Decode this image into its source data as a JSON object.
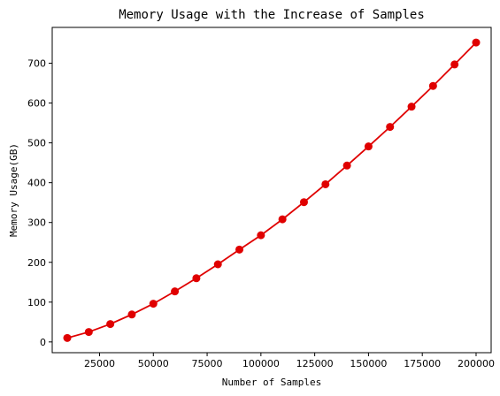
{
  "chart_data": {
    "type": "line",
    "title": "Memory Usage with the Increase of Samples",
    "xlabel": "Number of Samples",
    "ylabel": "Memory Usage(GB)",
    "xlim": [
      3000,
      207000
    ],
    "ylim": [
      -27,
      790
    ],
    "xticks": [
      25000,
      50000,
      75000,
      100000,
      125000,
      150000,
      175000,
      200000
    ],
    "yticks": [
      0,
      100,
      200,
      300,
      400,
      500,
      600,
      700
    ],
    "grid": false,
    "legend": "none",
    "series": [
      {
        "color": "#e00000",
        "marker": "circle",
        "x": [
          10000,
          20000,
          30000,
          40000,
          50000,
          60000,
          70000,
          80000,
          90000,
          100000,
          110000,
          120000,
          130000,
          140000,
          150000,
          160000,
          170000,
          180000,
          190000,
          200000
        ],
        "y": [
          10,
          25,
          45,
          69,
          96,
          127,
          160,
          195,
          232,
          268,
          308,
          351,
          396,
          443,
          491,
          540,
          591,
          643,
          697,
          752
        ]
      }
    ]
  }
}
